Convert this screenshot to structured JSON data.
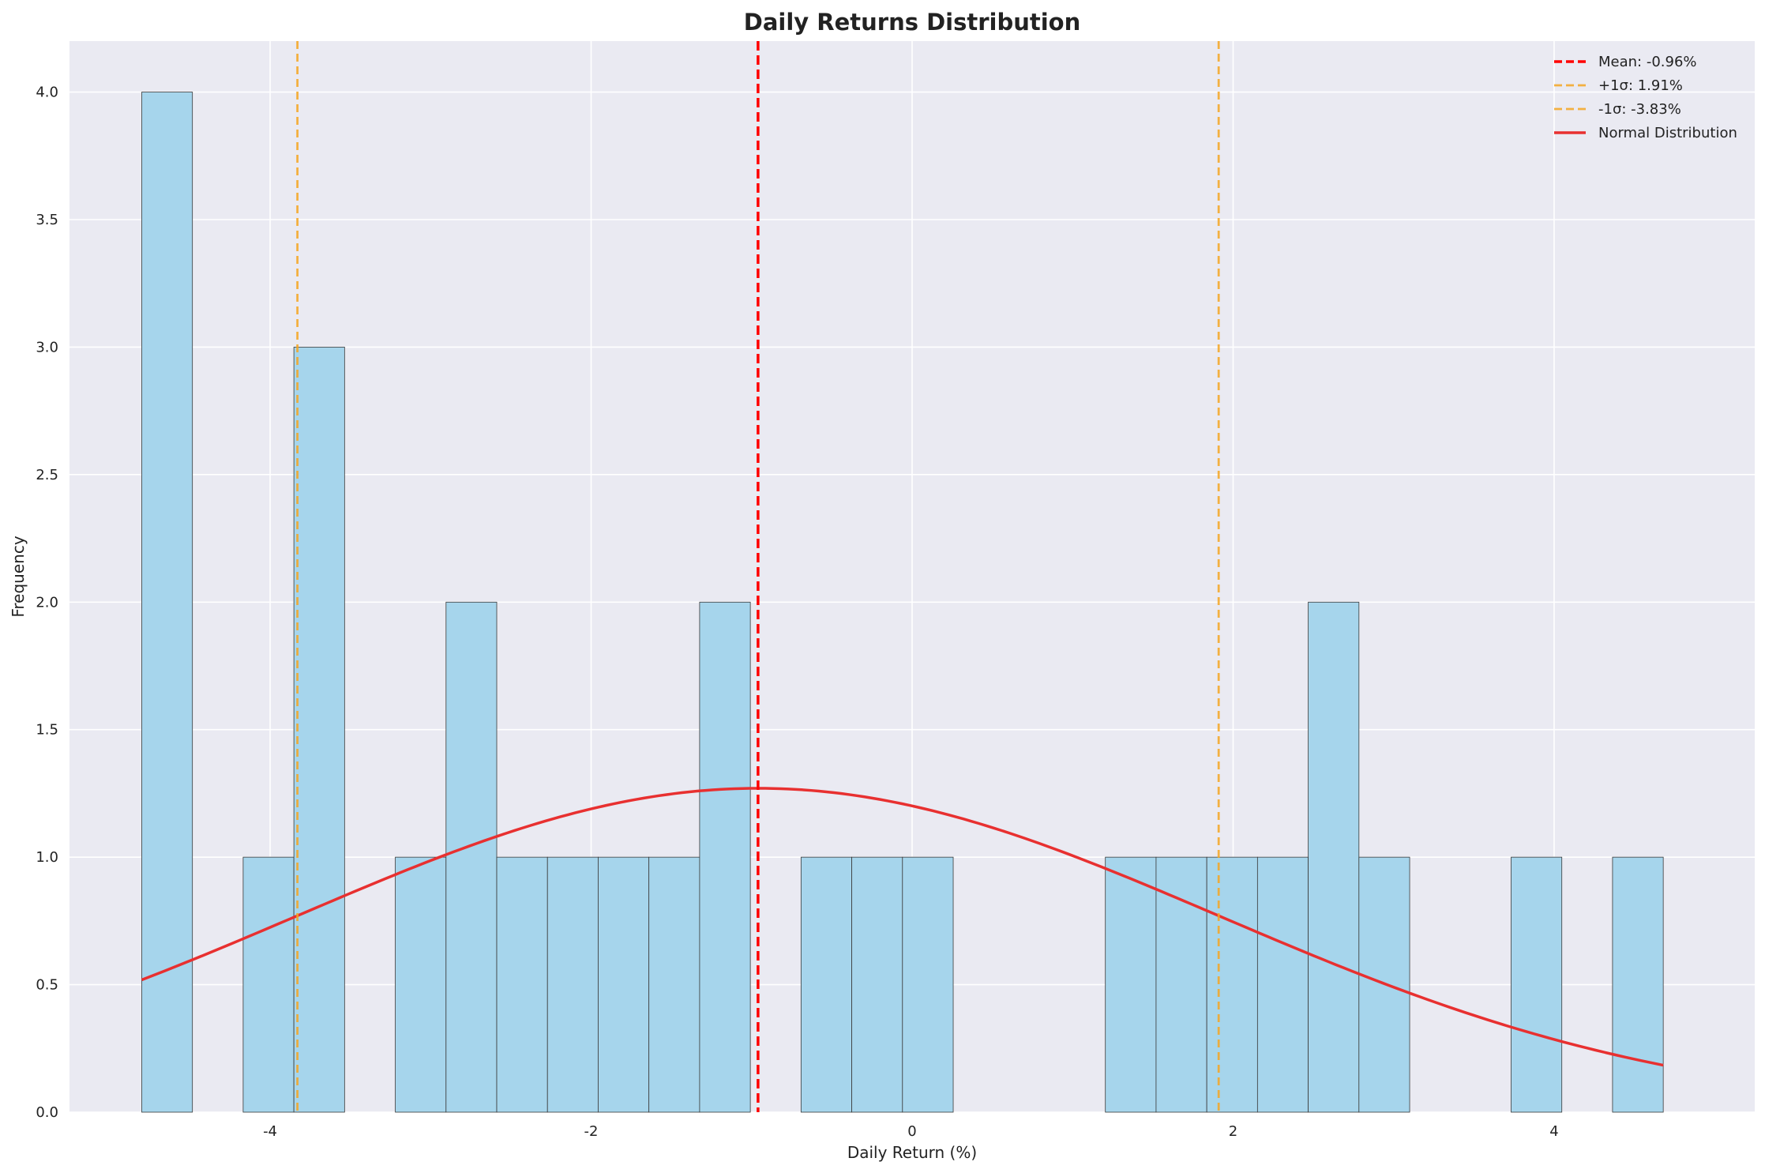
{
  "chart_data": {
    "type": "bar",
    "title": "Daily Returns Distribution",
    "xlabel": "Daily Return (%)",
    "ylabel": "Frequency",
    "xlim": [
      -5.25,
      5.25
    ],
    "ylim": [
      0,
      4.2
    ],
    "xticks": [
      -4,
      -2,
      0,
      2,
      4
    ],
    "xtick_labels": [
      "-4",
      "-2",
      "0",
      "2",
      "4"
    ],
    "yticks": [
      0,
      0.5,
      1,
      1.5,
      2,
      2.5,
      3,
      3.5,
      4
    ],
    "ytick_labels": [
      "0.0",
      "0.5",
      "1.0",
      "1.5",
      "2.0",
      "2.5",
      "3.0",
      "3.5",
      "4.0"
    ],
    "grid": true,
    "legend_position": "top-right",
    "histogram": {
      "bin_start": -4.8,
      "bin_width": 0.316,
      "counts": [
        4,
        0,
        1,
        3,
        0,
        1,
        2,
        1,
        1,
        1,
        1,
        2,
        0,
        1,
        1,
        1,
        0,
        0,
        0,
        1,
        1,
        1,
        1,
        2,
        1,
        0,
        0,
        1,
        0,
        1
      ],
      "fill_color": "#a6d5ec",
      "edge_color": "#3a3a3a"
    },
    "reference_lines": [
      {
        "name": "Mean: -0.96%",
        "x": -0.96,
        "color": "#ff0000",
        "style": "dashed"
      },
      {
        "name": "+1σ: 1.91%",
        "x": 1.91,
        "color": "#f5a623",
        "style": "dashed"
      },
      {
        "name": "-1σ: -3.83%",
        "x": -3.83,
        "color": "#f5a623",
        "style": "dashed"
      }
    ],
    "normal_curve": {
      "name": "Normal Distribution",
      "color": "#e83030",
      "x_range": [
        -4.8,
        4.68
      ],
      "mean": -0.96,
      "std": 2.87,
      "peak": 1.27
    },
    "colors": {
      "plot_background": "#eaeaf2",
      "grid": "#ffffff"
    }
  }
}
